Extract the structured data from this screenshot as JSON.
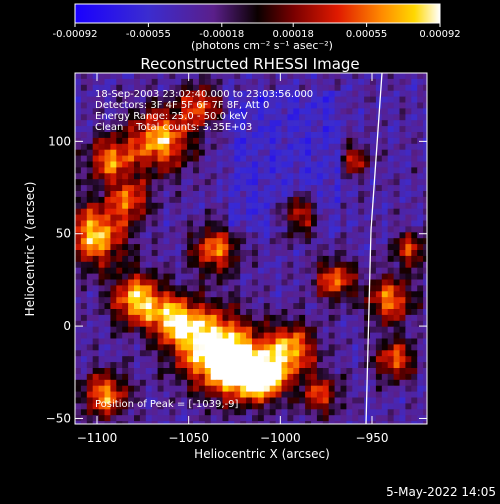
{
  "colorbar": {
    "ticks": [
      "-0.00092",
      "-0.00055",
      "-0.00018",
      "0.00018",
      "0.00055",
      "0.00092"
    ],
    "unit_label": "(photons cm⁻² s⁻¹ asec⁻²)"
  },
  "chart_data": {
    "type": "heatmap",
    "title": "Reconstructed RHESSI Image",
    "xlabel": "Heliocentric X (arcsec)",
    "ylabel": "Heliocentric Y (arcsec)",
    "xlim": [
      -1112,
      -920
    ],
    "ylim": [
      -53,
      137
    ],
    "x_ticks": [
      -1100,
      -1050,
      -1000,
      -950
    ],
    "y_ticks": [
      -50,
      0,
      50,
      100
    ],
    "color_range": [
      -0.00092,
      0.00092
    ],
    "annotations": [
      "18-Sep-2003 23:02:40.000 to 23:03:56.000",
      "Detectors: 3F 4F 5F 6F 7F 8F, Att 0",
      "Energy Range: 25.0 - 50.0 keV",
      "Clean    Total counts: 3.35E+03"
    ],
    "peak_label": "Position of Peak = [-1039,-9]",
    "peak_position": [
      -1039,
      -9
    ]
  },
  "footer": {
    "timestamp": "5-May-2022 14:05"
  },
  "colors": {
    "background": "#000000",
    "axes": "#ffffff"
  }
}
